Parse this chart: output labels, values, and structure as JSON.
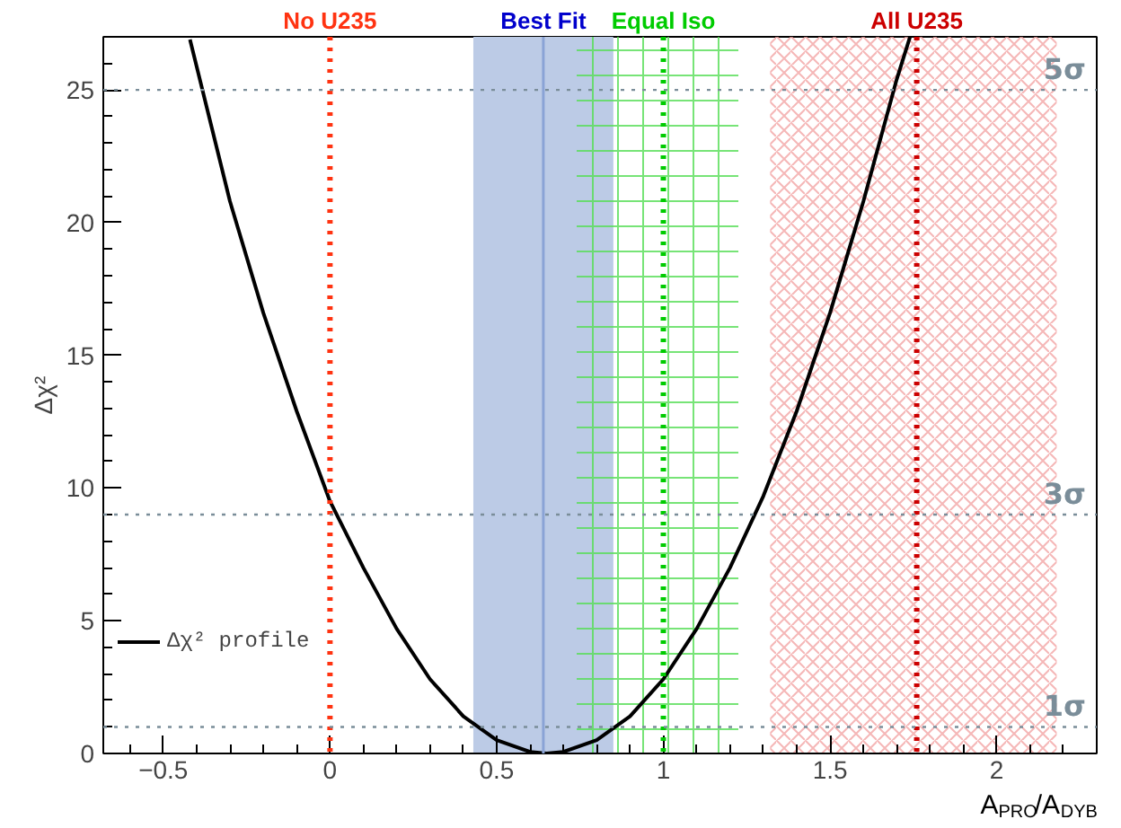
{
  "chart_data": {
    "type": "line",
    "xlabel": "A$_{PRO}$/A$_{DYB}$",
    "ylabel": "Δχ²",
    "x": [
      -0.42,
      -0.3,
      -0.2,
      -0.1,
      0,
      0.1,
      0.2,
      0.3,
      0.4,
      0.5,
      0.6,
      0.65,
      0.7,
      0.8,
      0.9,
      1.0,
      1.1,
      1.2,
      1.3,
      1.4,
      1.5,
      1.6,
      1.7,
      1.74
    ],
    "series": [
      {
        "name": "Δχ² profile",
        "color": "#000000",
        "values": [
          26.9,
          20.8,
          16.6,
          12.9,
          9.5,
          7.0,
          4.7,
          2.8,
          1.4,
          0.5,
          0.06,
          0,
          0.06,
          0.5,
          1.4,
          2.8,
          4.7,
          7.0,
          9.7,
          12.9,
          16.6,
          20.8,
          25.4,
          27.0
        ]
      }
    ],
    "xlim": [
      -0.68,
      2.3
    ],
    "ylim": [
      0,
      27
    ],
    "xticks": [
      {
        "value": -0.5,
        "label": "−0.5"
      },
      0,
      0.5,
      1,
      1.5,
      2
    ],
    "yticks": [
      0,
      5,
      10,
      15,
      20,
      25
    ],
    "ref_lines": [
      {
        "axis": "x",
        "value": 0,
        "label": "No U235",
        "color": "#ff3311",
        "line_style": "dotted"
      },
      {
        "axis": "x",
        "value": 0.64,
        "label": "Best Fit",
        "color": "#8aa3d6",
        "line_style": "solid"
      },
      {
        "axis": "x",
        "value": 1,
        "label": "Equal Iso",
        "color": "#00cc00",
        "line_style": "dotted"
      },
      {
        "axis": "x",
        "value": 1.76,
        "label": "All U235",
        "color": "#cc0000",
        "line_style": "dotted"
      },
      {
        "axis": "y",
        "value": 1,
        "label": "1σ",
        "color": "#7a8d99",
        "line_style": "dotted"
      },
      {
        "axis": "y",
        "value": 9,
        "label": "3σ",
        "color": "#7a8d99",
        "line_style": "dotted"
      },
      {
        "axis": "y",
        "value": 25,
        "label": "5σ",
        "color": "#7a8d99",
        "line_style": "dotted"
      }
    ],
    "bands": [
      {
        "axis": "x",
        "from": 0.43,
        "to": 0.85,
        "color": "#bccbe6"
      },
      {
        "axis": "x",
        "from": 0.74,
        "to": 1.225,
        "color": "#55dd55"
      },
      {
        "axis": "x",
        "from": 1.32,
        "to": 2.18,
        "color": "#f2a5a5"
      }
    ],
    "legend": "bottom left",
    "grid": false,
    "marker": "none",
    "line_style": "solid"
  }
}
